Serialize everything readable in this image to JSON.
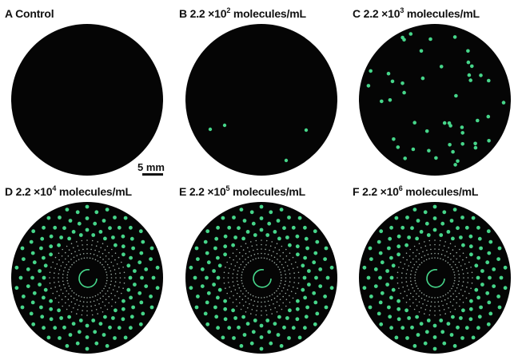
{
  "background_color": "#ffffff",
  "disc_color": "#050505",
  "spot_color": "#46d68a",
  "panels": [
    {
      "letter": "A",
      "prefix": "Control",
      "exponent": "",
      "suffix": "",
      "pattern": "empty"
    },
    {
      "letter": "B",
      "prefix": "2.2 ×10",
      "exponent": "2",
      "suffix": " molecules/mL",
      "pattern": "few"
    },
    {
      "letter": "C",
      "prefix": "2.2 ×10",
      "exponent": "3",
      "suffix": " molecules/mL",
      "pattern": "scattered"
    },
    {
      "letter": "D",
      "prefix": "2.2 ×10",
      "exponent": "4",
      "suffix": " molecules/mL",
      "pattern": "radial"
    },
    {
      "letter": "E",
      "prefix": "2.2 ×10",
      "exponent": "5",
      "suffix": " molecules/mL",
      "pattern": "radial"
    },
    {
      "letter": "F",
      "prefix": "2.2 ×10",
      "exponent": "6",
      "suffix": " molecules/mL",
      "pattern": "radial"
    }
  ],
  "scale_bar": {
    "label": "5 mm"
  }
}
